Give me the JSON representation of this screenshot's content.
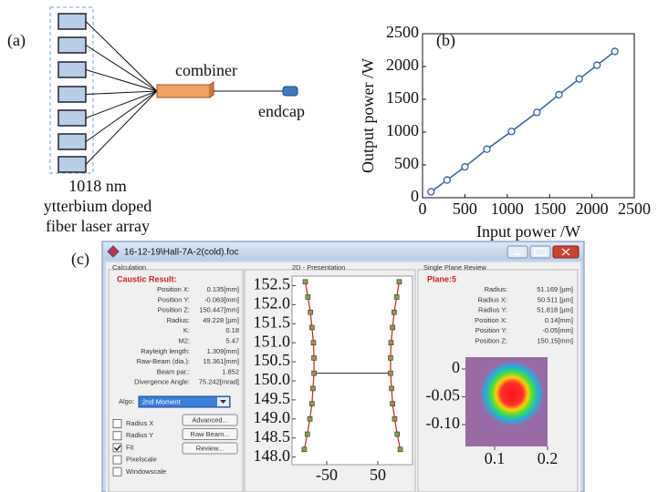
{
  "panel_a": {
    "label": "(a)",
    "combiner": "combiner",
    "endcap": "endcap",
    "caption": [
      "1018 nm",
      "ytterbium doped",
      "fiber laser array"
    ]
  },
  "chart_data": {
    "type": "line",
    "label": "(b)",
    "x_label": "Input power /W",
    "y_label": "Output power /W",
    "x": [
      100,
      290,
      500,
      760,
      1050,
      1350,
      1610,
      1850,
      2060,
      2270
    ],
    "series": [
      {
        "color": "#2d5fa8",
        "values": [
          90,
          270,
          470,
          740,
          1010,
          1300,
          1570,
          1810,
          2020,
          2230
        ]
      }
    ],
    "xlim": [
      0,
      2500
    ],
    "ylim": [
      0,
      2500
    ],
    "xticks": [
      0,
      500,
      1000,
      1500,
      2000,
      2500
    ],
    "yticks": [
      0,
      500,
      1000,
      1500,
      2000,
      2500
    ]
  },
  "panel_c": {
    "label": "(c)",
    "window_title": "16-12-19\\Hall-7A-2(cold).foc",
    "calculation": {
      "group": "Calculation",
      "heading": "Caustic Result:",
      "rows": [
        [
          "Position X:",
          "0.135[mm]"
        ],
        [
          "Position Y:",
          "-0.063[mm]"
        ],
        [
          "Position Z:",
          "150.447[mm]"
        ],
        [
          "Radius:",
          "49.228 [µm]"
        ],
        [
          "K:",
          "0.18"
        ],
        [
          "M2:",
          "5.47"
        ],
        [
          "Rayleigh length:",
          "1.309[mm]"
        ],
        [
          "Raw-Beam (dia.):",
          "15.361[mm]"
        ],
        [
          "Beam par.:",
          "1.852"
        ],
        [
          "Divergence Angle:",
          "75.242[mrad]"
        ]
      ],
      "algo_label": "Algo:",
      "algo_value": "2nd Moment",
      "checkboxes": [
        "Radius X",
        "Radius Y",
        "Fit",
        "Pixelscale",
        "Windowscale"
      ],
      "checked": [
        false,
        false,
        true,
        false,
        false
      ],
      "buttons": [
        "Advanced...",
        "Raw Beam...",
        "Review..."
      ]
    },
    "presentation": {
      "group": "2D - Presentation",
      "type": "scatter",
      "z": [
        152.6,
        152.2,
        151.8,
        151.4,
        151.0,
        150.6,
        150.2,
        149.8,
        149.4,
        149.0,
        148.6,
        148.2
      ],
      "series": [
        {
          "values": [
            -92,
            -87,
            -82,
            -79,
            -76,
            -75,
            -75,
            -77,
            -79,
            -83,
            -88,
            -94
          ]
        },
        {
          "values": [
            92,
            87,
            82,
            79,
            76,
            75,
            75,
            77,
            79,
            83,
            88,
            94
          ]
        }
      ],
      "marker_color": "#8aa040",
      "curve_color": "#d02020",
      "xlim": [
        -118,
        118
      ],
      "ylim": [
        147.8,
        152.75
      ],
      "xticks": [
        -50,
        50
      ],
      "yticks": [
        152.5,
        {
          "value": 152,
          "label": "152.0"
        },
        151.5,
        {
          "value": 151,
          "label": "151.0"
        },
        150.5,
        {
          "value": 150,
          "label": "150.0"
        },
        149.5,
        {
          "value": 149,
          "label": "149.0"
        },
        148.5,
        {
          "value": 148,
          "label": "148.0"
        }
      ]
    },
    "review": {
      "group": "Single Plane Review",
      "heading": "Plane:5",
      "rows": [
        [
          "Radius:",
          "51.169 [µm]"
        ],
        [
          "Radius X:",
          "50.511 [µm]"
        ],
        [
          "Radius Y:",
          "51.818 [µm]"
        ],
        [
          "Position X:",
          "0.14[mm]"
        ],
        [
          "Position Y:",
          "-0.05[mm]"
        ],
        [
          "Position Z:",
          "150.15[mm]"
        ]
      ],
      "xticks": [
        0.1,
        0.2
      ],
      "yticks": [
        0,
        -0.05,
        {
          "value": -0.1,
          "label": "-0.10"
        }
      ]
    }
  }
}
